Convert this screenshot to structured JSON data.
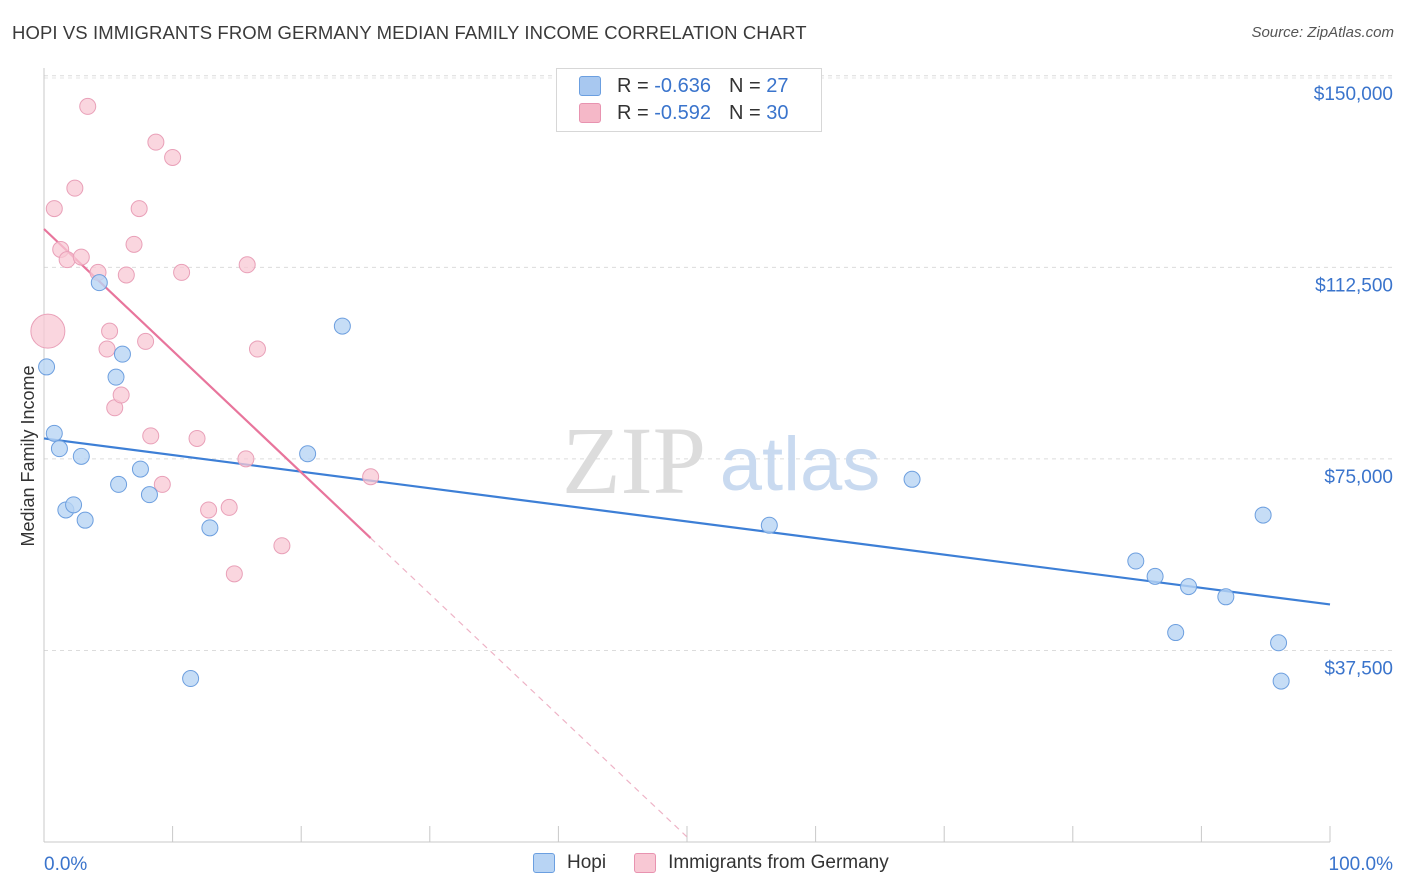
{
  "header": {
    "title": "HOPI VS IMMIGRANTS FROM GERMANY MEDIAN FAMILY INCOME CORRELATION CHART",
    "source": "Source: ZipAtlas.com"
  },
  "watermark": {
    "zip": "ZIP",
    "atlas": "atlas"
  },
  "stats_legend": [
    {
      "r_label": "R =",
      "r_value": "-0.636",
      "n_label": "N =",
      "n_value": "27",
      "color": "#a8c8f0"
    },
    {
      "r_label": "R =",
      "r_value": "-0.592",
      "n_label": "N =",
      "n_value": "30",
      "color": "#f5b8c8"
    }
  ],
  "bottom_legend": [
    {
      "label": "Hopi",
      "color": "#b8d4f4"
    },
    {
      "label": "Immigrants from Germany",
      "color": "#f8c8d4"
    }
  ],
  "chart_data": {
    "type": "scatter",
    "title": "HOPI VS IMMIGRANTS FROM GERMANY MEDIAN FAMILY INCOME CORRELATION CHART",
    "xlabel": "",
    "ylabel": "Median Family Income",
    "xlim": [
      0,
      100
    ],
    "ylim": [
      0,
      157000
    ],
    "x_tick_labels": [
      "0.0%",
      "100.0%"
    ],
    "y_ticks": [
      37500,
      75000,
      112500,
      150000
    ],
    "y_tick_labels": [
      "$37,500",
      "$75,000",
      "$112,500",
      "$150,000"
    ],
    "series": [
      {
        "name": "Hopi",
        "color": "#3d7fd6",
        "fill": "#b8d4f4",
        "points": [
          [
            0.2,
            93000
          ],
          [
            0.8,
            80000
          ],
          [
            1.2,
            77000
          ],
          [
            1.7,
            65000
          ],
          [
            2.3,
            66000
          ],
          [
            2.9,
            75500
          ],
          [
            3.2,
            63000
          ],
          [
            4.3,
            109500
          ],
          [
            5.6,
            91000
          ],
          [
            5.8,
            70000
          ],
          [
            6.1,
            95500
          ],
          [
            7.5,
            73000
          ],
          [
            8.2,
            68000
          ],
          [
            11.4,
            32000
          ],
          [
            12.9,
            61500
          ],
          [
            20.5,
            76000
          ],
          [
            23.2,
            101000
          ],
          [
            56.4,
            62000
          ],
          [
            67.5,
            71000
          ],
          [
            84.9,
            55000
          ],
          [
            86.4,
            52000
          ],
          [
            88.0,
            41000
          ],
          [
            89.0,
            50000
          ],
          [
            91.9,
            48000
          ],
          [
            94.8,
            64000
          ],
          [
            96.0,
            39000
          ],
          [
            96.2,
            31500
          ]
        ],
        "trend": [
          [
            0,
            79000
          ],
          [
            100,
            46500
          ]
        ]
      },
      {
        "name": "Immigrants from Germany",
        "color": "#e8759c",
        "fill": "#f8c8d4",
        "points": [
          [
            0.3,
            100000
          ],
          [
            0.8,
            124000
          ],
          [
            1.3,
            116000
          ],
          [
            1.8,
            114000
          ],
          [
            2.4,
            128000
          ],
          [
            2.9,
            114500
          ],
          [
            3.4,
            144000
          ],
          [
            4.2,
            111500
          ],
          [
            4.9,
            96500
          ],
          [
            5.1,
            100000
          ],
          [
            5.5,
            85000
          ],
          [
            6.0,
            87500
          ],
          [
            6.4,
            111000
          ],
          [
            7.0,
            117000
          ],
          [
            7.4,
            124000
          ],
          [
            7.9,
            98000
          ],
          [
            8.3,
            79500
          ],
          [
            8.7,
            137000
          ],
          [
            9.2,
            70000
          ],
          [
            10.0,
            134000
          ],
          [
            10.7,
            111500
          ],
          [
            11.9,
            79000
          ],
          [
            12.8,
            65000
          ],
          [
            14.4,
            65500
          ],
          [
            14.8,
            52500
          ],
          [
            15.7,
            75000
          ],
          [
            15.8,
            113000
          ],
          [
            16.6,
            96500
          ],
          [
            18.5,
            58000
          ],
          [
            25.4,
            71500
          ]
        ],
        "trend": [
          [
            0,
            120000
          ],
          [
            25.4,
            59500
          ]
        ],
        "trend_extension": [
          [
            25.4,
            59500
          ],
          [
            50.0,
            1000
          ]
        ]
      }
    ]
  }
}
